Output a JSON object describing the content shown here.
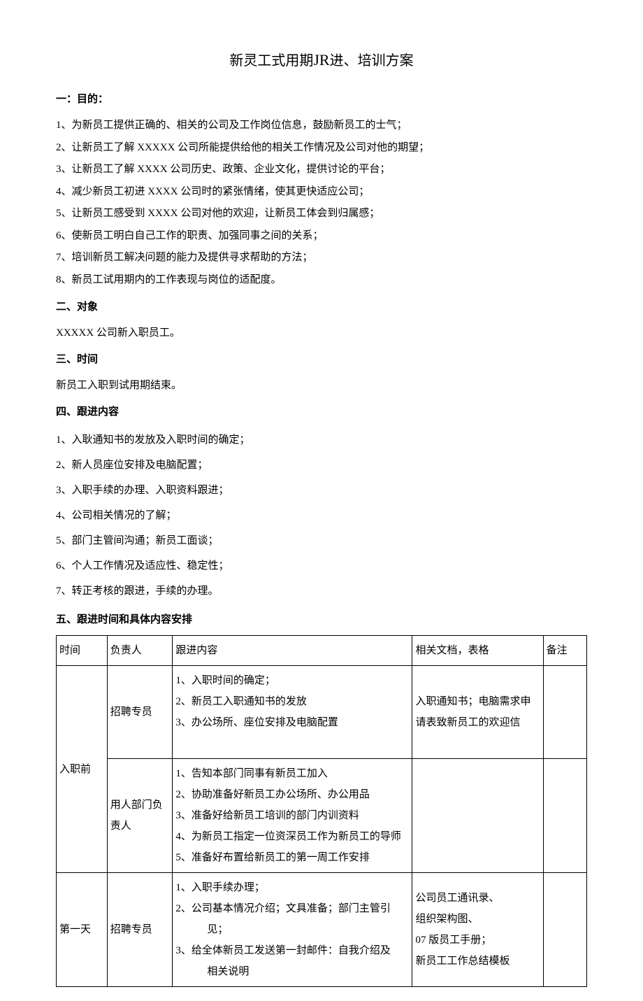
{
  "title": {
    "pre": "新灵工式用期",
    "jr": "JR",
    "post": "进、培训方案"
  },
  "sec1": {
    "header": "一：目的：",
    "items": [
      "1、为新员工提供正确的、相关的公司及工作岗位信息，鼓励新员工的士气；",
      "2、让新员工了解 XXXXX 公司所能提供给他的相关工作情况及公司对他的期望；",
      "3、让新员工了解 XXXX 公司历史、政策、企业文化，提供讨论的平台；",
      "4、减少新员工初进 XXXX 公司时的紧张情绪，使其更快适应公司；",
      "5、让新员工感受到 XXXX 公司对他的欢迎，让新员工体会到归属感；",
      "6、使新员工明白自己工作的职责、加强同事之间的关系；",
      "7、培训新员工解决问题的能力及提供寻求帮助的方法；",
      "8、新员工试用期内的工作表现与岗位的适配度。"
    ]
  },
  "sec2": {
    "header": "二、对象",
    "body": "XXXXX 公司新入职员工。"
  },
  "sec3": {
    "header": "三、时间",
    "body": "新员工入职到试用期结束。"
  },
  "sec4": {
    "header": "四、跟进内容",
    "items": [
      "1、入耿通知书的发放及入职时间的确定；",
      "2、新人员座位安排及电脑配置；",
      "3、入职手续的办理、入职资料跟进；",
      "4、公司相关情况的了解；",
      "5、部门主管间沟通；新员工面谈；",
      "6、个人工作情况及适应性、稳定性；",
      "7、转正考核的跟进，手续的办理。"
    ]
  },
  "sec5": {
    "header": "五、跟进时间和具体内容安排"
  },
  "table": {
    "headers": {
      "time": "时间",
      "owner": "负责人",
      "content": "跟进内容",
      "docs": "相关文档，表格",
      "note": "备注"
    },
    "row1": {
      "time": "入职前",
      "owner1": "招聘专员",
      "content1": [
        "1、入职时间的确定；",
        "2、新员工入职通知书的发放",
        "3、办公场所、座位安排及电脑配置"
      ],
      "docs1": "入职通知书；电脑需求申请表致新员工的欢迎信",
      "owner2": "用人部门负责人",
      "content2": [
        "1、告知本部门同事有新员工加入",
        "2、协助准备好新员工办公场所、办公用品",
        "3、准备好给新员工培训的部门内训资料",
        "4、为新员工指定一位资深员工作为新员工的导师",
        "5、准备好布置给新员工的第一周工作安排"
      ]
    },
    "row2": {
      "time": "第一天",
      "owner": "招聘专员",
      "content": [
        "1、入职手续办理；",
        "2、公司基本情况介绍；文具准备；部门主管引",
        "　　　见；",
        "3、给全体新员工发送第一封邮件：自我介绍及",
        "　　　相关说明"
      ],
      "docs": [
        "公司员工通讯录、",
        "组织架构图、",
        "07 版员工手册；",
        "新员工工作总结模板"
      ]
    }
  }
}
